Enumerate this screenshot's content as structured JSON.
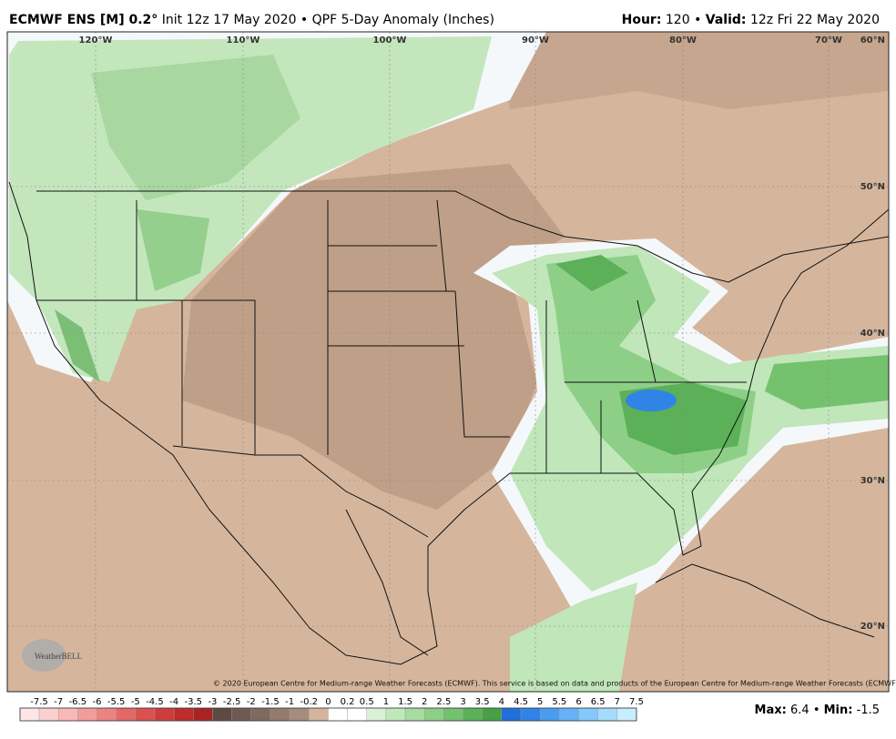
{
  "header": {
    "model": "ECMWF ENS [M] 0.2°",
    "description": "Init 12z 17 May 2020 • QPF 5-Day Anomaly (Inches)",
    "hour_label": "Hour:",
    "hour": "120",
    "separator": "•",
    "valid_label": "Valid:",
    "valid": "12z Fri 22 May 2020"
  },
  "map": {
    "lon_labels": [
      "120°W",
      "110°W",
      "100°W",
      "90°W",
      "80°W",
      "70°W"
    ],
    "lat_labels": [
      "60°N",
      "50°N",
      "40°N",
      "30°N",
      "20°N"
    ],
    "logo": "WeatherBELL",
    "copyright": "© 2020 European Centre for Medium-range Weather Forecasts (ECMWF). This service is based on data and products of the European Centre for Medium-range Weather Forecasts (ECMWF)."
  },
  "colorbar": {
    "labels": [
      -7.5,
      -7,
      -6.5,
      -6,
      -5.5,
      -5,
      -4.5,
      -4,
      -3.5,
      -3,
      -2.5,
      -2,
      -1.5,
      -1,
      -0.2,
      0,
      0.2,
      0.5,
      1,
      1.5,
      2,
      2.5,
      3,
      3.5,
      4,
      4.5,
      5,
      5.5,
      6,
      6.5,
      7,
      7.5
    ],
    "colors": [
      "#fde6e6",
      "#fbd0d0",
      "#f8b8b8",
      "#f29c9c",
      "#ec8282",
      "#e46868",
      "#db5050",
      "#cf3c3c",
      "#be2c2c",
      "#a82424",
      "#5e4a45",
      "#6e5a52",
      "#7f6a60",
      "#937b6e",
      "#a68c7e",
      "#d4b49c",
      "#ffffff",
      "#ffffff",
      "#d9f2d5",
      "#c0e8bb",
      "#a6dca0",
      "#8ecf88",
      "#74c16e",
      "#5cb058",
      "#47a045",
      "#1f6fdc",
      "#2f84e6",
      "#4a9cf0",
      "#66b2f6",
      "#85c8fa",
      "#a6dcfb",
      "#c6eefd"
    ]
  },
  "footer": {
    "max_label": "Max:",
    "max": 6.4,
    "min_label": "Min:",
    "min": -1.5
  }
}
